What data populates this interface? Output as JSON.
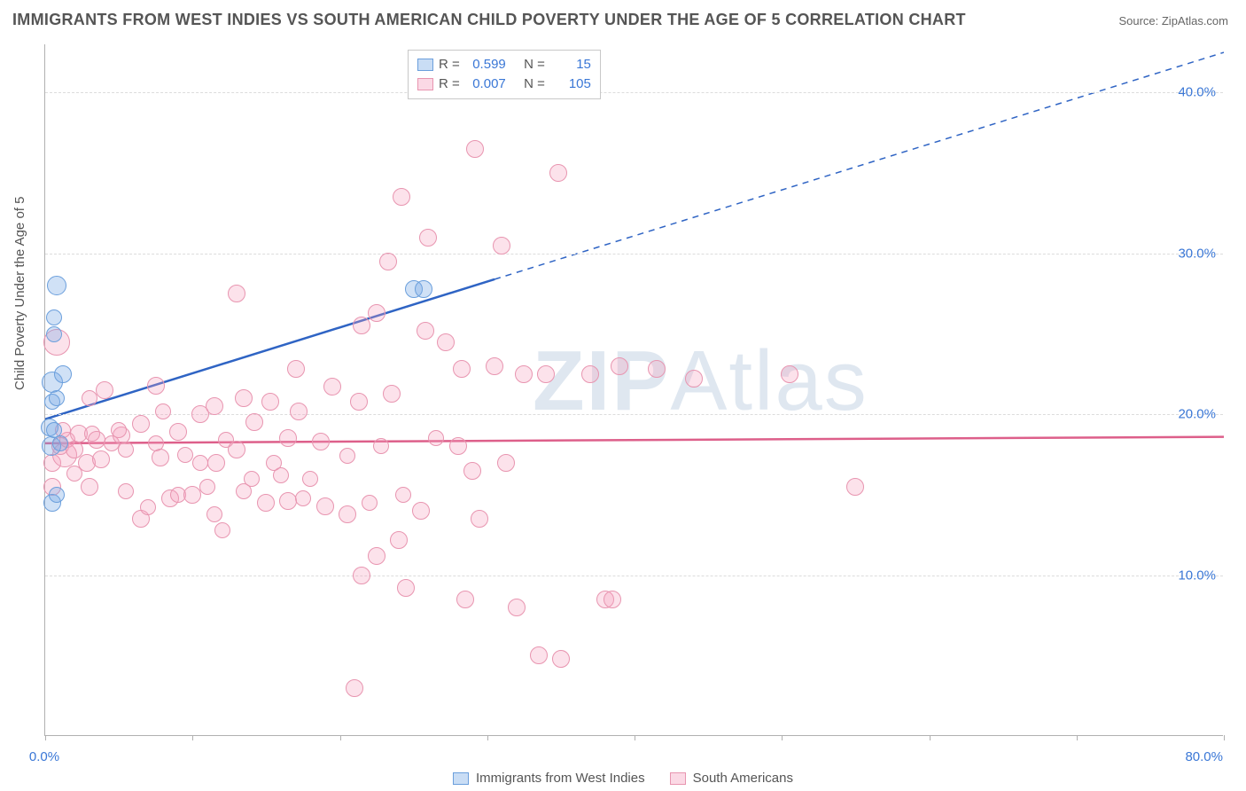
{
  "title": "IMMIGRANTS FROM WEST INDIES VS SOUTH AMERICAN CHILD POVERTY UNDER THE AGE OF 5 CORRELATION CHART",
  "source_label": "Source: ",
  "source_value": "ZipAtlas.com",
  "y_axis_label": "Child Poverty Under the Age of 5",
  "watermark_a": "ZIP",
  "watermark_b": "Atlas",
  "chart": {
    "type": "scatter",
    "xlim": [
      0,
      80
    ],
    "ylim": [
      0,
      43
    ],
    "x_ticks_major": [
      0,
      10,
      20,
      30,
      40,
      50,
      60,
      70,
      80
    ],
    "x_tick_labels": {
      "0": "0.0%",
      "80": "80.0%"
    },
    "y_gridlines": [
      10,
      20,
      30,
      40
    ],
    "y_tick_labels": {
      "10": "10.0%",
      "20": "20.0%",
      "30": "30.0%",
      "40": "40.0%"
    },
    "background_color": "#ffffff",
    "grid_color": "#dcdcdc",
    "axis_color": "#b0b0b0",
    "tick_label_color": "#3a77d6",
    "label_fontsize": 15,
    "title_fontsize": 18,
    "title_color": "#555555",
    "watermark_color": "#dfe7f0",
    "watermark_fontsize": 96
  },
  "series": {
    "blue": {
      "label": "Immigrants from West Indies",
      "r": "0.599",
      "n": "15",
      "fill": "rgba(120,170,230,0.35)",
      "stroke": "#6b9fdc",
      "trend_color": "#2f64c4",
      "trend": {
        "x1": 0,
        "y1": 19.7,
        "x2": 80,
        "y2": 42.5,
        "solid_until_x": 30.5
      },
      "points": [
        {
          "x": 0.5,
          "y": 14.5,
          "r": 10
        },
        {
          "x": 0.8,
          "y": 15.0,
          "r": 9
        },
        {
          "x": 0.4,
          "y": 18.0,
          "r": 11
        },
        {
          "x": 1.0,
          "y": 18.2,
          "r": 9
        },
        {
          "x": 0.3,
          "y": 19.2,
          "r": 10
        },
        {
          "x": 0.6,
          "y": 19.0,
          "r": 9
        },
        {
          "x": 0.5,
          "y": 20.8,
          "r": 9
        },
        {
          "x": 0.8,
          "y": 21.0,
          "r": 9
        },
        {
          "x": 0.5,
          "y": 22.0,
          "r": 12
        },
        {
          "x": 1.2,
          "y": 22.5,
          "r": 10
        },
        {
          "x": 0.6,
          "y": 25.0,
          "r": 9
        },
        {
          "x": 0.6,
          "y": 26.0,
          "r": 9
        },
        {
          "x": 0.8,
          "y": 28.0,
          "r": 11
        },
        {
          "x": 25.0,
          "y": 27.8,
          "r": 10
        },
        {
          "x": 25.7,
          "y": 27.8,
          "r": 10
        }
      ]
    },
    "pink": {
      "label": "South Americans",
      "r": "0.007",
      "n": "105",
      "fill": "rgba(245,160,190,0.3)",
      "stroke": "#e895b0",
      "trend_color": "#dd5f8a",
      "trend": {
        "x1": 0,
        "y1": 18.2,
        "x2": 80,
        "y2": 18.6,
        "solid_until_x": 80
      },
      "points": [
        {
          "x": 0.5,
          "y": 17.0,
          "r": 10
        },
        {
          "x": 1.3,
          "y": 17.5,
          "r": 14
        },
        {
          "x": 1.0,
          "y": 18.0,
          "r": 10
        },
        {
          "x": 1.5,
          "y": 18.4,
          "r": 9
        },
        {
          "x": 2.0,
          "y": 17.8,
          "r": 10
        },
        {
          "x": 1.2,
          "y": 19.0,
          "r": 9
        },
        {
          "x": 2.3,
          "y": 18.8,
          "r": 10
        },
        {
          "x": 0.8,
          "y": 24.5,
          "r": 15
        },
        {
          "x": 0.5,
          "y": 15.5,
          "r": 10
        },
        {
          "x": 2.0,
          "y": 16.3,
          "r": 9
        },
        {
          "x": 2.8,
          "y": 17.0,
          "r": 10
        },
        {
          "x": 3.0,
          "y": 21.0,
          "r": 9
        },
        {
          "x": 3.2,
          "y": 18.8,
          "r": 9
        },
        {
          "x": 3.8,
          "y": 17.2,
          "r": 10
        },
        {
          "x": 3.5,
          "y": 18.4,
          "r": 10
        },
        {
          "x": 4.5,
          "y": 18.2,
          "r": 9
        },
        {
          "x": 4.0,
          "y": 21.5,
          "r": 10
        },
        {
          "x": 5.2,
          "y": 18.7,
          "r": 10
        },
        {
          "x": 5.5,
          "y": 17.8,
          "r": 9
        },
        {
          "x": 5.0,
          "y": 19.0,
          "r": 9
        },
        {
          "x": 6.5,
          "y": 13.5,
          "r": 10
        },
        {
          "x": 7.0,
          "y": 14.2,
          "r": 9
        },
        {
          "x": 6.5,
          "y": 19.4,
          "r": 10
        },
        {
          "x": 7.5,
          "y": 18.2,
          "r": 9
        },
        {
          "x": 7.8,
          "y": 17.3,
          "r": 10
        },
        {
          "x": 8.0,
          "y": 20.2,
          "r": 9
        },
        {
          "x": 7.5,
          "y": 21.8,
          "r": 10
        },
        {
          "x": 8.5,
          "y": 14.8,
          "r": 10
        },
        {
          "x": 9.0,
          "y": 15.0,
          "r": 9
        },
        {
          "x": 9.5,
          "y": 17.5,
          "r": 9
        },
        {
          "x": 9.0,
          "y": 18.9,
          "r": 10
        },
        {
          "x": 10.0,
          "y": 15.0,
          "r": 10
        },
        {
          "x": 10.5,
          "y": 17.0,
          "r": 9
        },
        {
          "x": 10.5,
          "y": 20.0,
          "r": 10
        },
        {
          "x": 11.0,
          "y": 15.5,
          "r": 9
        },
        {
          "x": 11.6,
          "y": 17.0,
          "r": 10
        },
        {
          "x": 11.5,
          "y": 20.5,
          "r": 10
        },
        {
          "x": 12.0,
          "y": 12.8,
          "r": 9
        },
        {
          "x": 12.3,
          "y": 18.4,
          "r": 9
        },
        {
          "x": 13.0,
          "y": 17.8,
          "r": 10
        },
        {
          "x": 13.5,
          "y": 15.2,
          "r": 9
        },
        {
          "x": 13.5,
          "y": 21.0,
          "r": 10
        },
        {
          "x": 13.0,
          "y": 27.5,
          "r": 10
        },
        {
          "x": 14.0,
          "y": 16.0,
          "r": 9
        },
        {
          "x": 14.2,
          "y": 19.5,
          "r": 10
        },
        {
          "x": 15.0,
          "y": 14.5,
          "r": 10
        },
        {
          "x": 15.5,
          "y": 17.0,
          "r": 9
        },
        {
          "x": 15.3,
          "y": 20.8,
          "r": 10
        },
        {
          "x": 16.0,
          "y": 16.2,
          "r": 9
        },
        {
          "x": 16.5,
          "y": 14.6,
          "r": 10
        },
        {
          "x": 16.5,
          "y": 18.5,
          "r": 10
        },
        {
          "x": 17.5,
          "y": 14.8,
          "r": 9
        },
        {
          "x": 17.2,
          "y": 20.2,
          "r": 10
        },
        {
          "x": 17.0,
          "y": 22.8,
          "r": 10
        },
        {
          "x": 18.0,
          "y": 16.0,
          "r": 9
        },
        {
          "x": 18.7,
          "y": 18.3,
          "r": 10
        },
        {
          "x": 19.0,
          "y": 14.3,
          "r": 10
        },
        {
          "x": 19.5,
          "y": 21.7,
          "r": 10
        },
        {
          "x": 20.5,
          "y": 17.4,
          "r": 9
        },
        {
          "x": 20.5,
          "y": 13.8,
          "r": 10
        },
        {
          "x": 21.0,
          "y": 3.0,
          "r": 10
        },
        {
          "x": 21.5,
          "y": 10.0,
          "r": 10
        },
        {
          "x": 21.3,
          "y": 20.8,
          "r": 10
        },
        {
          "x": 21.5,
          "y": 25.5,
          "r": 10
        },
        {
          "x": 22.0,
          "y": 14.5,
          "r": 9
        },
        {
          "x": 22.5,
          "y": 11.2,
          "r": 10
        },
        {
          "x": 22.8,
          "y": 18.0,
          "r": 9
        },
        {
          "x": 22.5,
          "y": 26.3,
          "r": 10
        },
        {
          "x": 23.5,
          "y": 21.3,
          "r": 10
        },
        {
          "x": 23.3,
          "y": 29.5,
          "r": 10
        },
        {
          "x": 24.0,
          "y": 12.2,
          "r": 10
        },
        {
          "x": 24.3,
          "y": 15.0,
          "r": 9
        },
        {
          "x": 24.5,
          "y": 9.2,
          "r": 10
        },
        {
          "x": 24.2,
          "y": 33.5,
          "r": 10
        },
        {
          "x": 25.5,
          "y": 14.0,
          "r": 10
        },
        {
          "x": 25.8,
          "y": 25.2,
          "r": 10
        },
        {
          "x": 26.0,
          "y": 31.0,
          "r": 10
        },
        {
          "x": 26.5,
          "y": 18.5,
          "r": 9
        },
        {
          "x": 27.2,
          "y": 24.5,
          "r": 10
        },
        {
          "x": 28.0,
          "y": 18.0,
          "r": 10
        },
        {
          "x": 28.3,
          "y": 22.8,
          "r": 10
        },
        {
          "x": 28.5,
          "y": 8.5,
          "r": 10
        },
        {
          "x": 29.0,
          "y": 16.5,
          "r": 10
        },
        {
          "x": 29.5,
          "y": 13.5,
          "r": 10
        },
        {
          "x": 29.2,
          "y": 36.5,
          "r": 10
        },
        {
          "x": 30.5,
          "y": 23.0,
          "r": 10
        },
        {
          "x": 31.0,
          "y": 30.5,
          "r": 10
        },
        {
          "x": 31.3,
          "y": 17.0,
          "r": 10
        },
        {
          "x": 32.0,
          "y": 8.0,
          "r": 10
        },
        {
          "x": 32.5,
          "y": 22.5,
          "r": 10
        },
        {
          "x": 33.5,
          "y": 5.0,
          "r": 10
        },
        {
          "x": 34.0,
          "y": 22.5,
          "r": 10
        },
        {
          "x": 34.8,
          "y": 35.0,
          "r": 10
        },
        {
          "x": 35.0,
          "y": 4.8,
          "r": 10
        },
        {
          "x": 37.0,
          "y": 22.5,
          "r": 10
        },
        {
          "x": 38.0,
          "y": 8.5,
          "r": 10
        },
        {
          "x": 38.5,
          "y": 8.5,
          "r": 10
        },
        {
          "x": 39.0,
          "y": 23.0,
          "r": 10
        },
        {
          "x": 41.5,
          "y": 22.8,
          "r": 10
        },
        {
          "x": 44.0,
          "y": 22.2,
          "r": 10
        },
        {
          "x": 50.5,
          "y": 22.5,
          "r": 10
        },
        {
          "x": 55.0,
          "y": 15.5,
          "r": 10
        },
        {
          "x": 3.0,
          "y": 15.5,
          "r": 10
        },
        {
          "x": 5.5,
          "y": 15.2,
          "r": 9
        },
        {
          "x": 11.5,
          "y": 13.8,
          "r": 9
        }
      ]
    }
  },
  "stats_legend": {
    "r_label": "R  =",
    "n_label": "N  ="
  }
}
